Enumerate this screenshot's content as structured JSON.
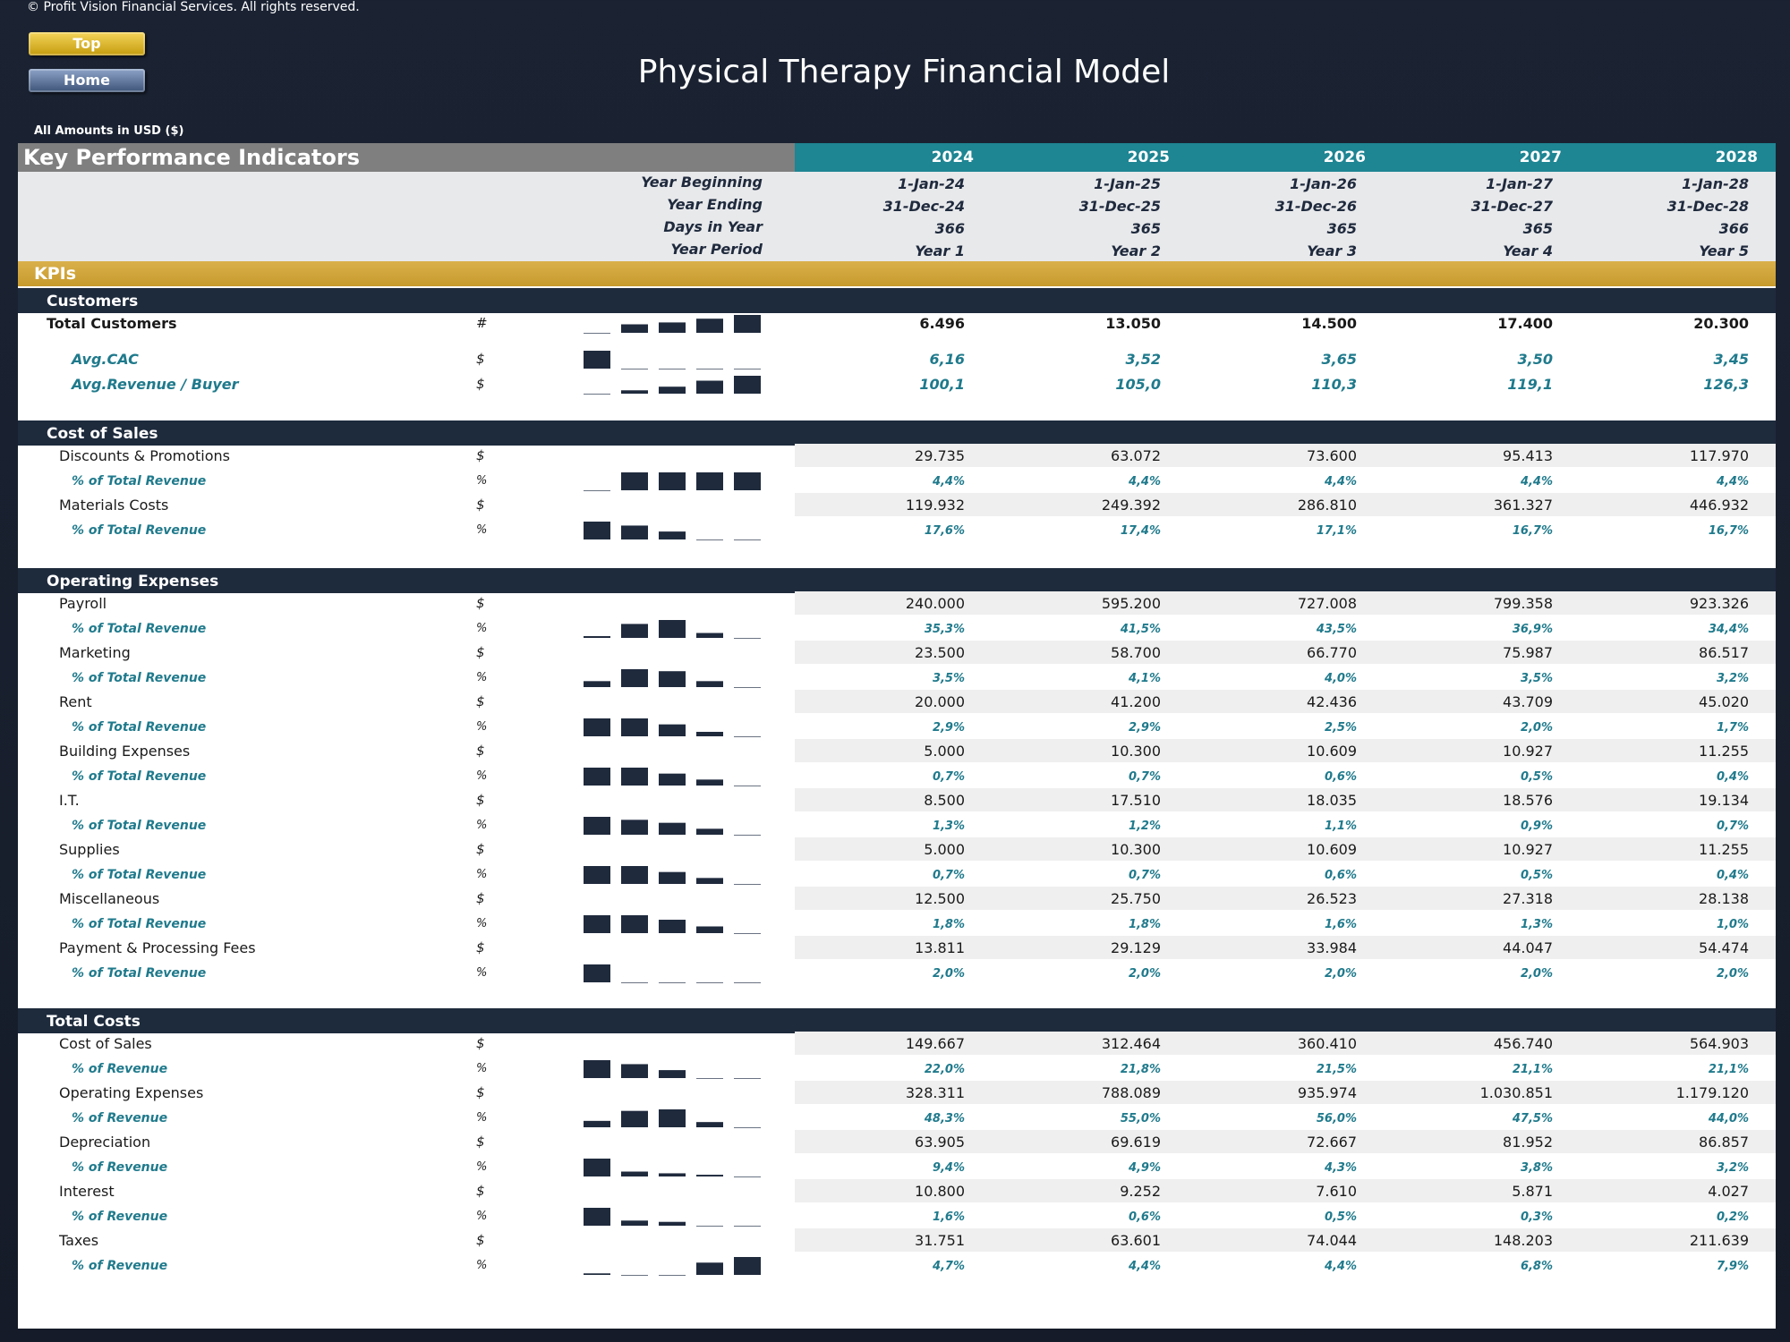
{
  "copyright": "© Profit Vision Financial Services. All rights reserved.",
  "nav": {
    "top_label": "Top",
    "home_label": "Home"
  },
  "title": "Physical Therapy Financial Model",
  "amounts_note": "All Amounts in  USD ($)",
  "header": {
    "label": "Key Performance Indicators",
    "years": [
      "2024",
      "2025",
      "2026",
      "2027",
      "2028"
    ]
  },
  "period": {
    "year_beginning_label": "Year Beginning",
    "year_ending_label": "Year Ending",
    "days_label": "Days in Year",
    "period_label": "Year Period",
    "year_beginning": [
      "1-Jan-24",
      "1-Jan-25",
      "1-Jan-26",
      "1-Jan-27",
      "1-Jan-28"
    ],
    "year_ending": [
      "31-Dec-24",
      "31-Dec-25",
      "31-Dec-26",
      "31-Dec-27",
      "31-Dec-28"
    ],
    "days": [
      "366",
      "365",
      "365",
      "365",
      "366"
    ],
    "year_period": [
      "Year 1",
      "Year 2",
      "Year 3",
      "Year 4",
      "Year 5"
    ]
  },
  "kpis_label": "KPIs",
  "sections": [
    {
      "title": "Customers",
      "rows": [
        {
          "label": "Total Customers",
          "unit": "#",
          "style": "total",
          "values": [
            "6.496",
            "13.050",
            "14.500",
            "17.400",
            "20.300"
          ],
          "spark": [
            6.496,
            13.05,
            14.5,
            17.4,
            20.3
          ],
          "shaded": false
        },
        {
          "label": "Avg.CAC",
          "unit": "$",
          "style": "kpi",
          "values": [
            "6,16",
            "3,52",
            "3,65",
            "3,50",
            "3,45"
          ],
          "spark": [
            6.16,
            3.52,
            3.65,
            3.5,
            3.45
          ],
          "shaded": false
        },
        {
          "label": "Avg.Revenue / Buyer",
          "unit": "$",
          "style": "kpi",
          "values": [
            "100,1",
            "105,0",
            "110,3",
            "119,1",
            "126,3"
          ],
          "spark": [
            100.1,
            105.0,
            110.3,
            119.1,
            126.3
          ],
          "shaded": false
        }
      ]
    },
    {
      "title": "Cost of Sales",
      "rows": [
        {
          "label": "Discounts & Promotions",
          "unit": "$",
          "style": "main",
          "values": [
            "29.735",
            "63.072",
            "73.600",
            "95.413",
            "117.970"
          ],
          "shaded": true
        },
        {
          "label": "% of Total Revenue",
          "unit": "%",
          "style": "pct",
          "values": [
            "4,4%",
            "4,4%",
            "4,4%",
            "4,4%",
            "4,4%"
          ],
          "spark": [
            4.4,
            4.4,
            4.4,
            4.4,
            4.4
          ],
          "spark_min": 4.4
        },
        {
          "label": "Materials Costs",
          "unit": "$",
          "style": "main",
          "values": [
            "119.932",
            "249.392",
            "286.810",
            "361.327",
            "446.932"
          ],
          "shaded": true
        },
        {
          "label": "% of Total Revenue",
          "unit": "%",
          "style": "pct",
          "values": [
            "17,6%",
            "17,4%",
            "17,1%",
            "16,7%",
            "16,7%"
          ],
          "spark": [
            17.6,
            17.4,
            17.1,
            16.7,
            16.7
          ]
        }
      ]
    },
    {
      "title": "Operating Expenses",
      "rows": [
        {
          "label": "Payroll",
          "unit": "$",
          "style": "main",
          "values": [
            "240.000",
            "595.200",
            "727.008",
            "799.358",
            "923.326"
          ],
          "shaded": true
        },
        {
          "label": "% of Total Revenue",
          "unit": "%",
          "style": "pct",
          "values": [
            "35,3%",
            "41,5%",
            "43,5%",
            "36,9%",
            "34,4%"
          ],
          "spark": [
            35.3,
            41.5,
            43.5,
            36.9,
            34.4
          ]
        },
        {
          "label": "Marketing",
          "unit": "$",
          "style": "main",
          "values": [
            "23.500",
            "58.700",
            "66.770",
            "75.987",
            "86.517"
          ],
          "shaded": true
        },
        {
          "label": "% of Total Revenue",
          "unit": "%",
          "style": "pct",
          "values": [
            "3,5%",
            "4,1%",
            "4,0%",
            "3,5%",
            "3,2%"
          ],
          "spark": [
            3.5,
            4.1,
            4.0,
            3.5,
            3.2
          ]
        },
        {
          "label": "Rent",
          "unit": "$",
          "style": "main",
          "values": [
            "20.000",
            "41.200",
            "42.436",
            "43.709",
            "45.020"
          ],
          "shaded": true
        },
        {
          "label": "% of Total Revenue",
          "unit": "%",
          "style": "pct",
          "values": [
            "2,9%",
            "2,9%",
            "2,5%",
            "2,0%",
            "1,7%"
          ],
          "spark": [
            2.9,
            2.9,
            2.5,
            2.0,
            1.7
          ]
        },
        {
          "label": "Building Expenses",
          "unit": "$",
          "style": "main",
          "values": [
            "5.000",
            "10.300",
            "10.609",
            "10.927",
            "11.255"
          ],
          "shaded": true
        },
        {
          "label": "% of Total Revenue",
          "unit": "%",
          "style": "pct",
          "values": [
            "0,7%",
            "0,7%",
            "0,6%",
            "0,5%",
            "0,4%"
          ],
          "spark": [
            0.7,
            0.7,
            0.6,
            0.5,
            0.4
          ]
        },
        {
          "label": "I.T.",
          "unit": "$",
          "style": "main",
          "values": [
            "8.500",
            "17.510",
            "18.035",
            "18.576",
            "19.134"
          ],
          "shaded": true
        },
        {
          "label": "% of Total Revenue",
          "unit": "%",
          "style": "pct",
          "values": [
            "1,3%",
            "1,2%",
            "1,1%",
            "0,9%",
            "0,7%"
          ],
          "spark": [
            1.3,
            1.2,
            1.1,
            0.9,
            0.7
          ]
        },
        {
          "label": "Supplies",
          "unit": "$",
          "style": "main",
          "values": [
            "5.000",
            "10.300",
            "10.609",
            "10.927",
            "11.255"
          ],
          "shaded": true
        },
        {
          "label": "% of Total Revenue",
          "unit": "%",
          "style": "pct",
          "values": [
            "0,7%",
            "0,7%",
            "0,6%",
            "0,5%",
            "0,4%"
          ],
          "spark": [
            0.7,
            0.7,
            0.6,
            0.5,
            0.4
          ]
        },
        {
          "label": "Miscellaneous",
          "unit": "$",
          "style": "main",
          "values": [
            "12.500",
            "25.750",
            "26.523",
            "27.318",
            "28.138"
          ],
          "shaded": true
        },
        {
          "label": "% of Total Revenue",
          "unit": "%",
          "style": "pct",
          "values": [
            "1,8%",
            "1,8%",
            "1,6%",
            "1,3%",
            "1,0%"
          ],
          "spark": [
            1.8,
            1.8,
            1.6,
            1.3,
            1.0
          ]
        },
        {
          "label": "Payment & Processing Fees",
          "unit": "$",
          "style": "main",
          "values": [
            "13.811",
            "29.129",
            "33.984",
            "44.047",
            "54.474"
          ],
          "shaded": true
        },
        {
          "label": "% of Total Revenue",
          "unit": "%",
          "style": "pct",
          "values": [
            "2,0%",
            "2,0%",
            "2,0%",
            "2,0%",
            "2,0%"
          ],
          "spark": [
            2.0,
            2.0,
            2.0,
            2.0,
            2.0
          ],
          "spark_first_only": true
        }
      ]
    },
    {
      "title": "Total Costs",
      "rows": [
        {
          "label": "Cost of Sales",
          "unit": "$",
          "style": "main",
          "values": [
            "149.667",
            "312.464",
            "360.410",
            "456.740",
            "564.903"
          ],
          "shaded": true
        },
        {
          "label": "% of Revenue",
          "unit": "%",
          "style": "pct",
          "values": [
            "22,0%",
            "21,8%",
            "21,5%",
            "21,1%",
            "21,1%"
          ],
          "spark": [
            22.0,
            21.8,
            21.5,
            21.1,
            21.1
          ]
        },
        {
          "label": "Operating Expenses",
          "unit": "$",
          "style": "main",
          "values": [
            "328.311",
            "788.089",
            "935.974",
            "1.030.851",
            "1.179.120"
          ],
          "shaded": true
        },
        {
          "label": "% of Revenue",
          "unit": "%",
          "style": "pct",
          "values": [
            "48,3%",
            "55,0%",
            "56,0%",
            "47,5%",
            "44,0%"
          ],
          "spark": [
            48.3,
            55.0,
            56.0,
            47.5,
            44.0
          ]
        },
        {
          "label": "Depreciation",
          "unit": "$",
          "style": "main",
          "values": [
            "63.905",
            "69.619",
            "72.667",
            "81.952",
            "86.857"
          ],
          "shaded": true
        },
        {
          "label": "% of Revenue",
          "unit": "%",
          "style": "pct",
          "values": [
            "9,4%",
            "4,9%",
            "4,3%",
            "3,8%",
            "3,2%"
          ],
          "spark": [
            9.4,
            4.9,
            4.3,
            3.8,
            3.2
          ]
        },
        {
          "label": "Interest",
          "unit": "$",
          "style": "main",
          "values": [
            "10.800",
            "9.252",
            "7.610",
            "5.871",
            "4.027"
          ],
          "shaded": true
        },
        {
          "label": "% of Revenue",
          "unit": "%",
          "style": "pct",
          "values": [
            "1,6%",
            "0,6%",
            "0,5%",
            "0,3%",
            "0,2%"
          ],
          "spark": [
            1.6,
            0.6,
            0.5,
            0.3,
            0.2
          ]
        },
        {
          "label": "Taxes",
          "unit": "$",
          "style": "main",
          "values": [
            "31.751",
            "63.601",
            "74.044",
            "148.203",
            "211.639"
          ],
          "shaded": true
        },
        {
          "label": "% of Revenue",
          "unit": "%",
          "style": "pct",
          "values": [
            "4,7%",
            "4,4%",
            "4,4%",
            "6,8%",
            "7,9%"
          ],
          "spark": [
            4.7,
            4.4,
            4.4,
            6.8,
            7.9
          ]
        }
      ]
    }
  ],
  "colors": {
    "teal": "#1e8593",
    "gold": "#c79a2c",
    "navy": "#1e2b3d",
    "spark": "#1f2a3d"
  }
}
